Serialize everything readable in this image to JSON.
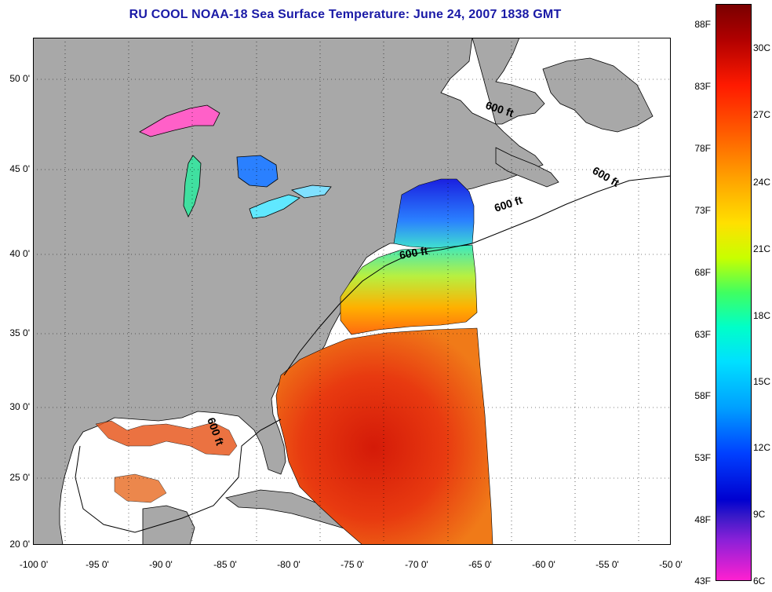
{
  "title": "RU COOL  NOAA-18  Sea Surface Temperature:  June 24, 2007 1838 GMT",
  "map": {
    "lat_labels": [
      "50 0'",
      "45 0'",
      "40 0'",
      "35 0'",
      "30 0'",
      "25 0'",
      "20 0'"
    ],
    "lon_labels": [
      "-100 0'",
      "-95 0'",
      "-90 0'",
      "-85 0'",
      "-80 0'",
      "-75 0'",
      "-70 0'",
      "-65 0'",
      "-60 0'",
      "-55 0'",
      "-50 0'"
    ],
    "contour_label": "600 ft",
    "colors": {
      "land": "#a8a8a8",
      "ocean": "#ffffff",
      "grid": "#000000"
    }
  },
  "colorbar": {
    "fahrenheit": [
      "88F",
      "83F",
      "78F",
      "73F",
      "68F",
      "63F",
      "58F",
      "53F",
      "48F",
      "43F"
    ],
    "celsius": [
      "30C",
      "27C",
      "24C",
      "21C",
      "18C",
      "15C",
      "12C",
      "9C",
      "6C"
    ]
  }
}
